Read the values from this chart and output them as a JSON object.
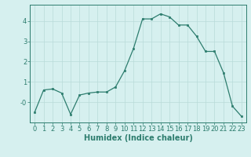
{
  "x": [
    0,
    1,
    2,
    3,
    4,
    5,
    6,
    7,
    8,
    9,
    10,
    11,
    12,
    13,
    14,
    15,
    16,
    17,
    18,
    19,
    20,
    21,
    22,
    23
  ],
  "y": [
    -0.5,
    0.6,
    0.65,
    0.45,
    -0.6,
    0.35,
    0.45,
    0.5,
    0.5,
    0.75,
    1.55,
    2.65,
    4.1,
    4.1,
    4.35,
    4.2,
    3.8,
    3.8,
    3.25,
    2.5,
    2.5,
    1.45,
    -0.2,
    -0.7
  ],
  "xlabel": "Humidex (Indice chaleur)",
  "ylim": [
    -1.0,
    4.8
  ],
  "xlim": [
    -0.5,
    23.5
  ],
  "yticks": [
    0,
    1,
    2,
    3,
    4
  ],
  "ytick_labels": [
    "-0",
    "1",
    "2",
    "3",
    "4"
  ],
  "xticks": [
    0,
    1,
    2,
    3,
    4,
    5,
    6,
    7,
    8,
    9,
    10,
    11,
    12,
    13,
    14,
    15,
    16,
    17,
    18,
    19,
    20,
    21,
    22,
    23
  ],
  "line_color": "#2d7d6e",
  "marker_color": "#2d7d6e",
  "bg_color": "#d6f0ef",
  "grid_color": "#b8dbd9",
  "axis_color": "#2d7d6e",
  "xlabel_fontsize": 7,
  "tick_fontsize": 6
}
